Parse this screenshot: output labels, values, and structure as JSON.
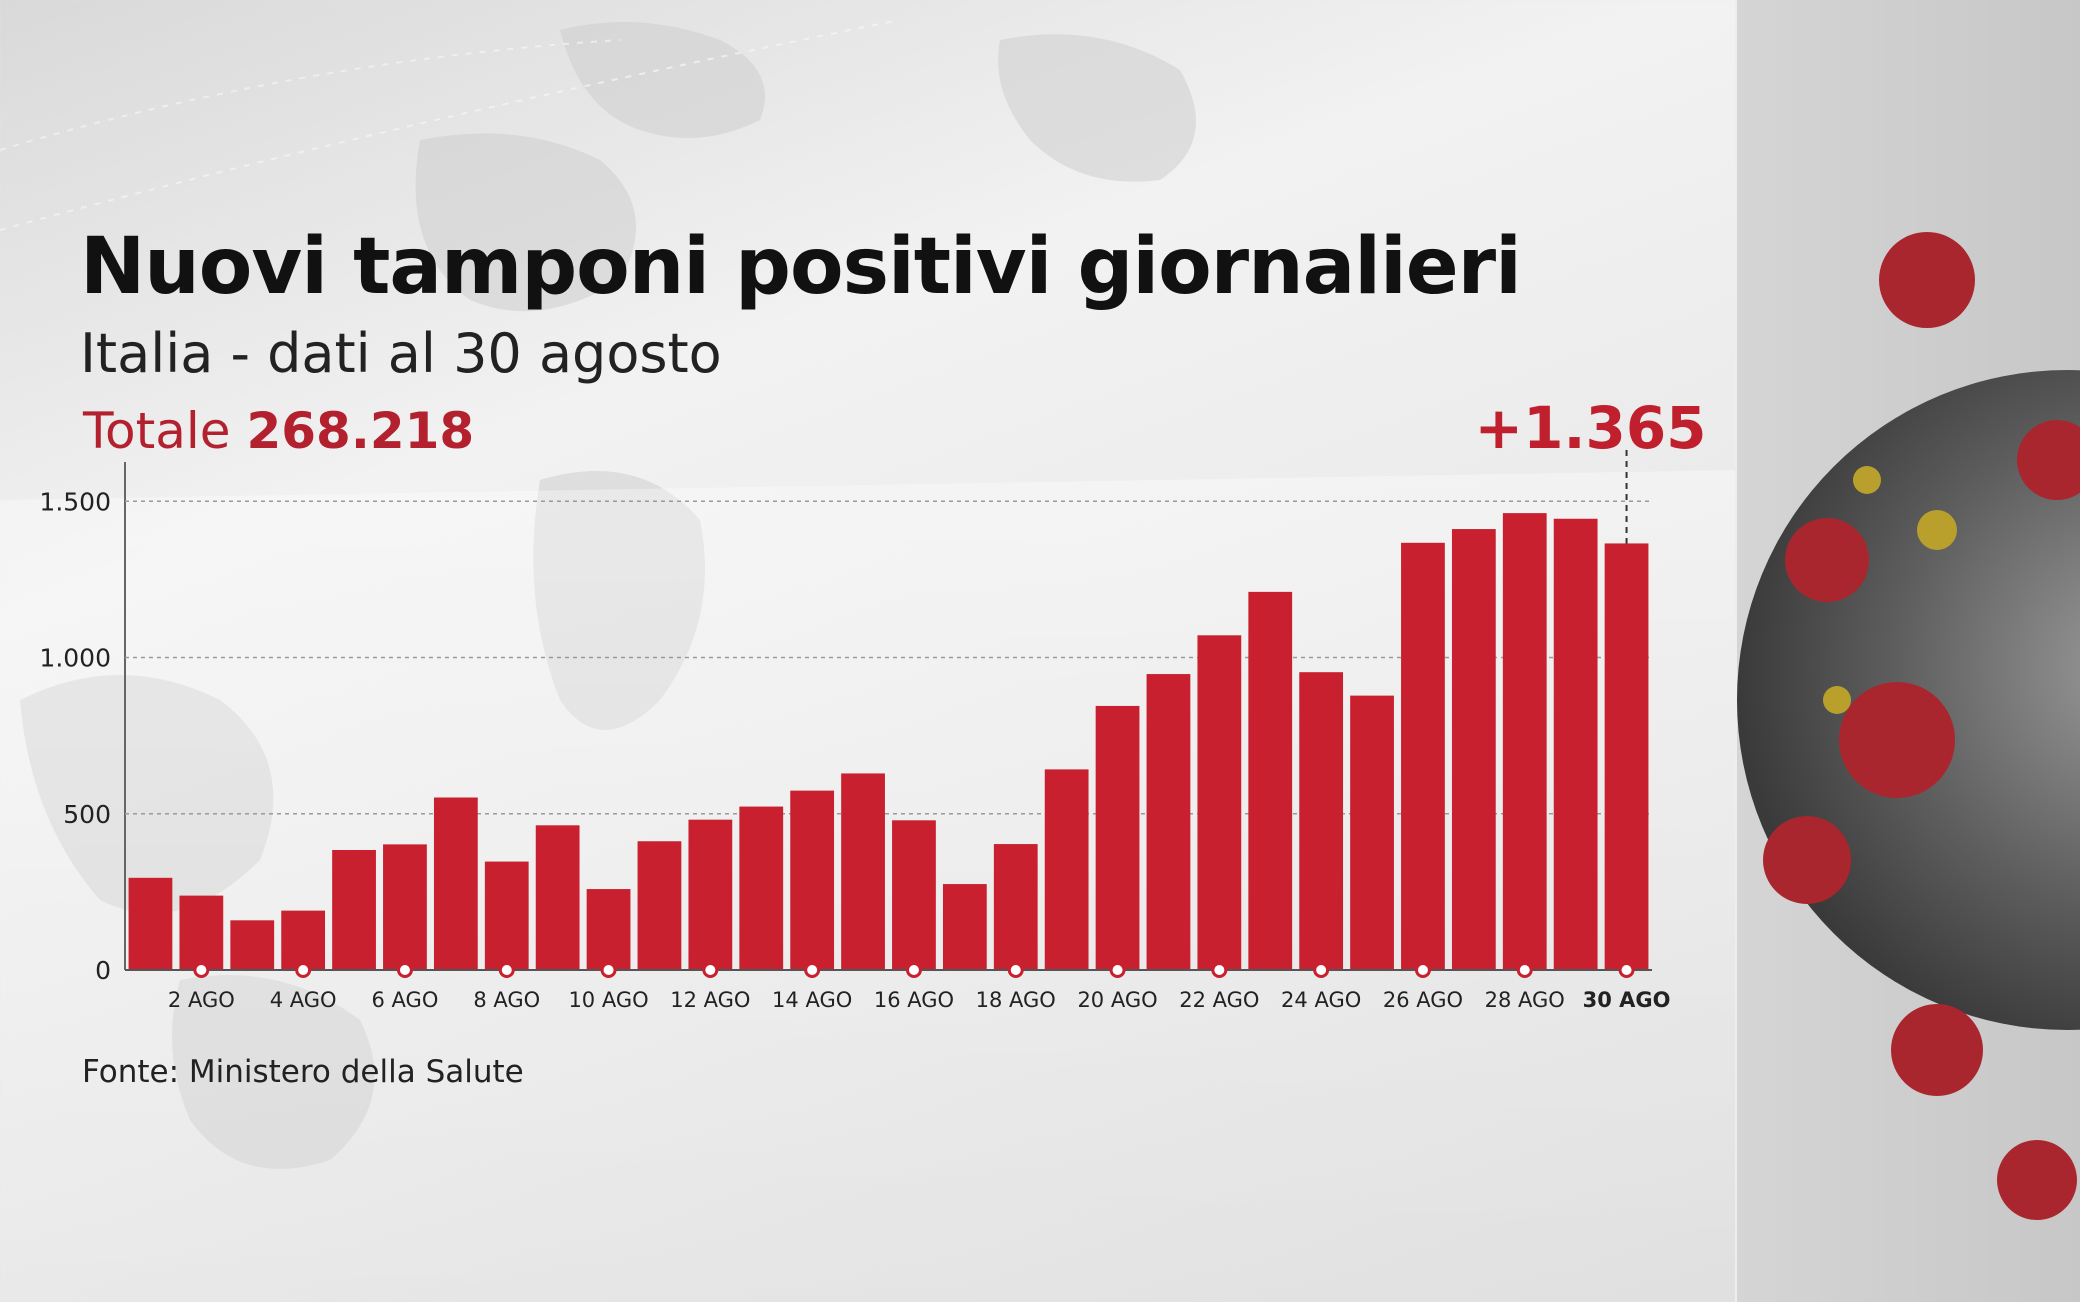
{
  "header": {
    "title": "Nuovi tamponi positivi giornalieri",
    "subtitle": "Italia - dati al 30 agosto",
    "total_label": "Totale",
    "total_value": "268.218"
  },
  "source": "Fonte: Ministero della Salute",
  "colors": {
    "bar": "#c8202e",
    "accent_text": "#b3212f"
  },
  "chart_data": {
    "type": "bar",
    "categories": [
      "1 AGO",
      "2 AGO",
      "3 AGO",
      "4 AGO",
      "5 AGO",
      "6 AGO",
      "7 AGO",
      "8 AGO",
      "9 AGO",
      "10 AGO",
      "11 AGO",
      "12 AGO",
      "13 AGO",
      "14 AGO",
      "15 AGO",
      "16 AGO",
      "17 AGO",
      "18 AGO",
      "19 AGO",
      "20 AGO",
      "21 AGO",
      "22 AGO",
      "23 AGO",
      "24 AGO",
      "25 AGO",
      "26 AGO",
      "27 AGO",
      "28 AGO",
      "29 AGO",
      "30 AGO"
    ],
    "values": [
      295,
      238,
      159,
      190,
      384,
      402,
      552,
      347,
      463,
      259,
      412,
      481,
      523,
      574,
      629,
      479,
      275,
      403,
      642,
      845,
      947,
      1071,
      1210,
      953,
      878,
      1367,
      1411,
      1462,
      1444,
      1365
    ],
    "tick_labels": [
      "2 AGO",
      "4 AGO",
      "6 AGO",
      "8 AGO",
      "10 AGO",
      "12 AGO",
      "14 AGO",
      "16 AGO",
      "18 AGO",
      "20 AGO",
      "22 AGO",
      "24 AGO",
      "26 AGO",
      "28 AGO",
      "30 AGO"
    ],
    "highlight_tick": "30 AGO",
    "yticks": [
      0,
      500,
      1000,
      1500
    ],
    "ytick_labels": [
      "0",
      "500",
      "1.000",
      "1.500"
    ],
    "ylim": [
      0,
      1600
    ],
    "gridlines": true,
    "callout": {
      "category": "30 AGO",
      "label": "+1.365"
    },
    "xlabel": "",
    "ylabel": ""
  }
}
